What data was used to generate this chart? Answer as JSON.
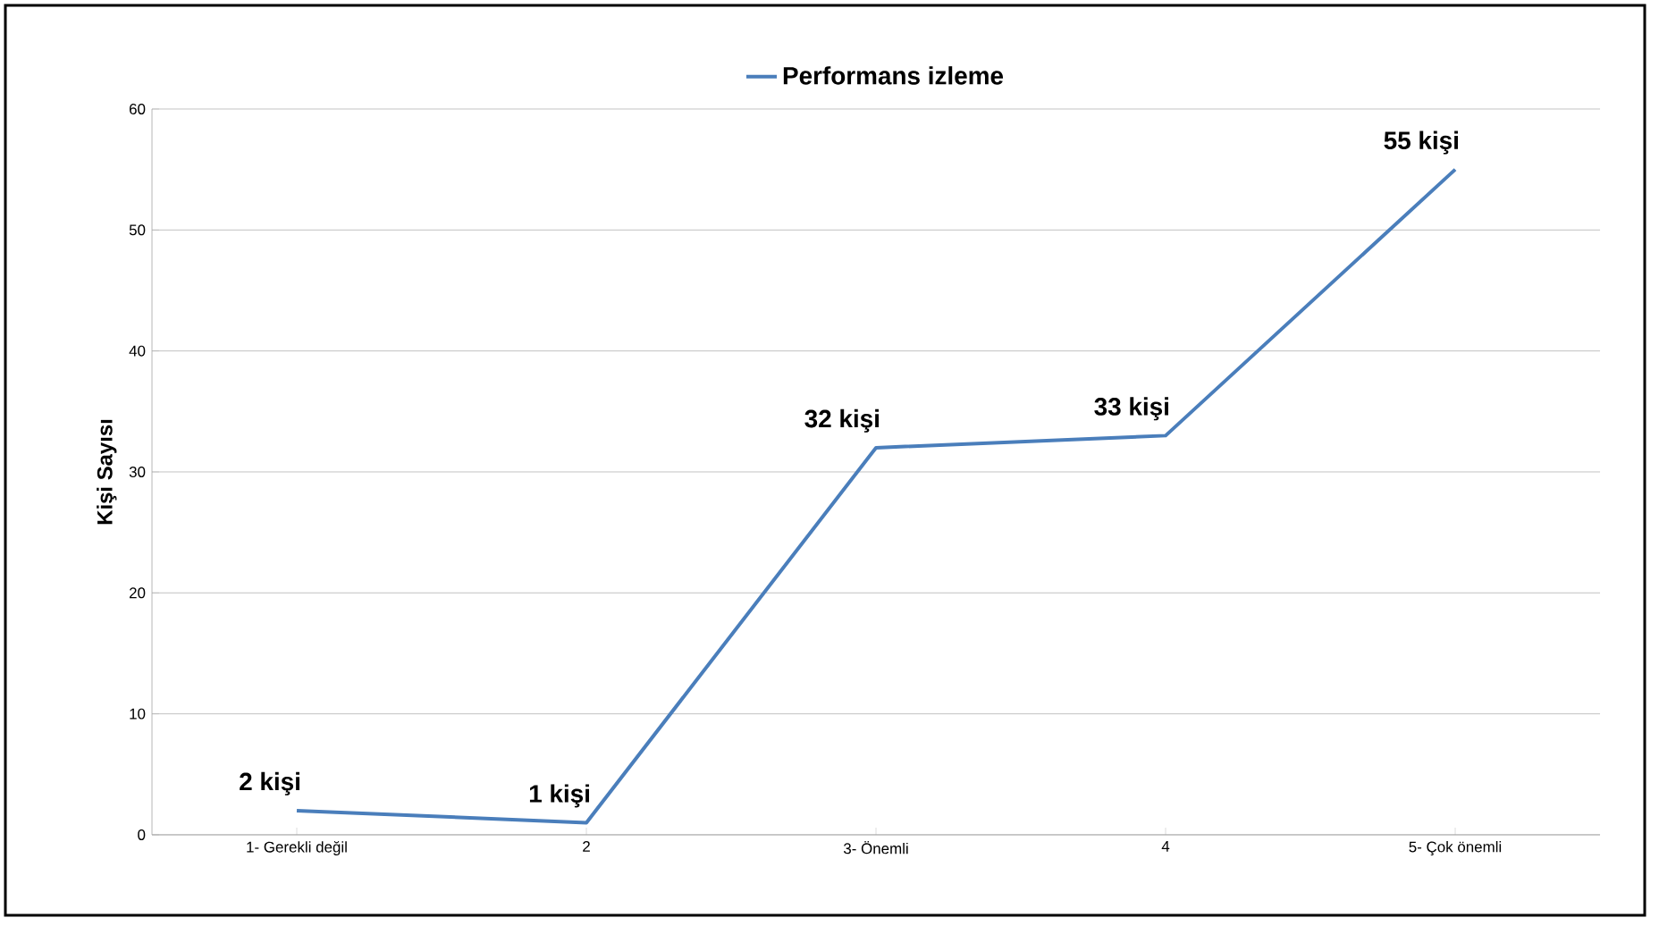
{
  "chart_data": {
    "type": "line",
    "ylabel": "Kişi Sayısı",
    "categories": [
      "1- Gerekli değil",
      "2",
      "3- Önemli",
      "4",
      "5- Çok önemli"
    ],
    "series": [
      {
        "name": "Performans izleme",
        "color": "#4a7ebb",
        "values": [
          2,
          1,
          32,
          33,
          55
        ],
        "value_labels": [
          "2 kişi",
          "1 kişi",
          "32 kişi",
          "33 kişi",
          "55 kişi"
        ]
      }
    ],
    "ylim": [
      0,
      60
    ],
    "yticks": [
      0,
      10,
      20,
      30,
      40,
      50,
      60
    ],
    "grid": "y",
    "legend": "top",
    "marker": "none",
    "line_style": "solid"
  }
}
